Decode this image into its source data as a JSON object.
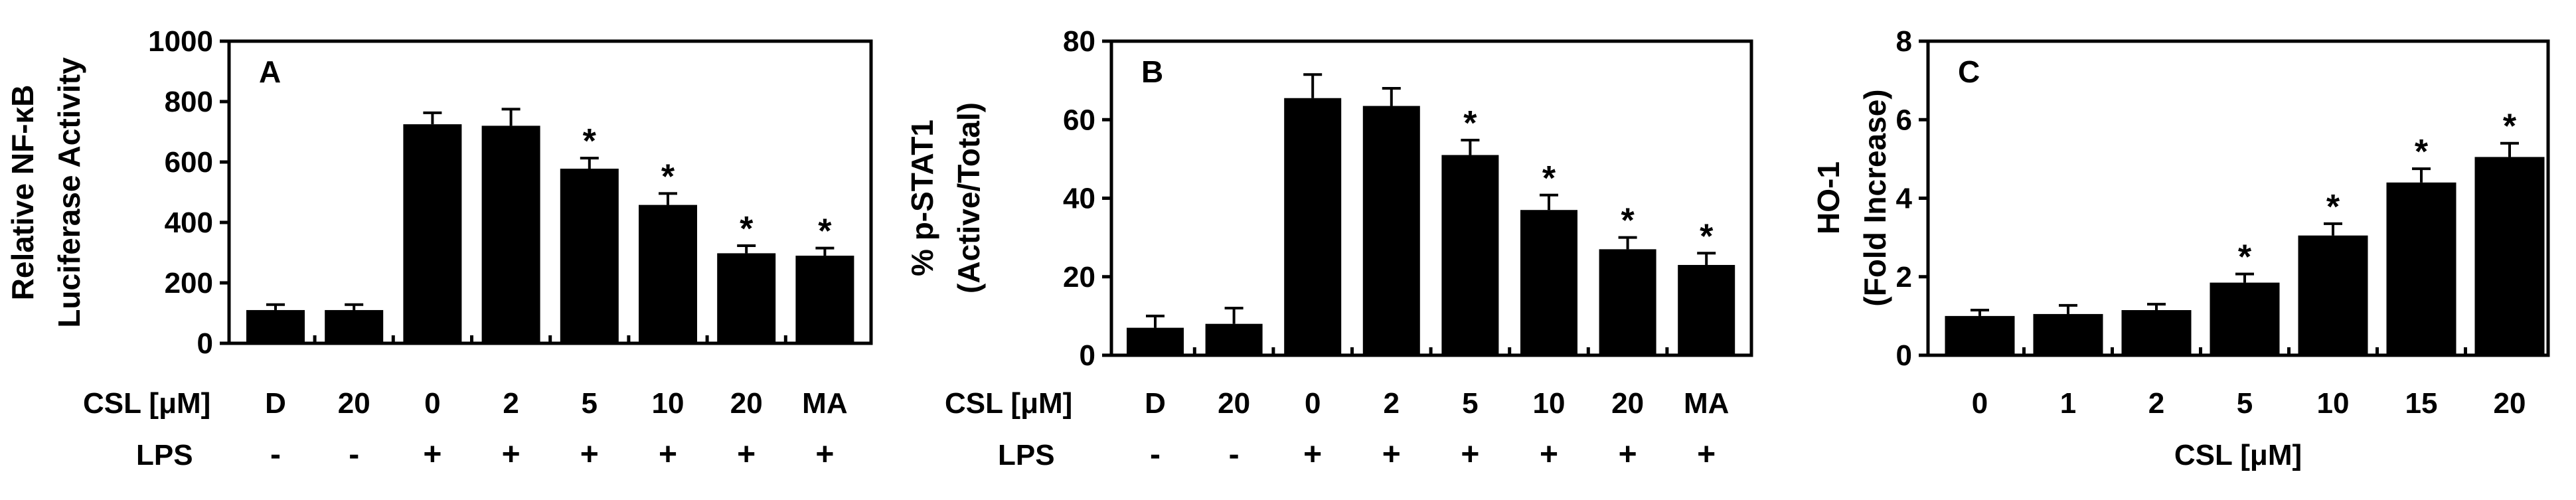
{
  "chart_data": [
    {
      "type": "bar",
      "panel_label": "A",
      "ylabel_lines": [
        "Relative NF-κB",
        "Luciferase Activity"
      ],
      "ylim": [
        0,
        1000
      ],
      "yticks": [
        0,
        200,
        400,
        600,
        800,
        1000
      ],
      "row1_label": "CSL [μM]",
      "row2_label": "LPS",
      "categories": [
        "D",
        "20",
        "0",
        "2",
        "5",
        "10",
        "20",
        "MA"
      ],
      "lps": [
        "-",
        "-",
        "+",
        "+",
        "+",
        "+",
        "+",
        "+"
      ],
      "values": [
        110,
        110,
        725,
        720,
        578,
        458,
        298,
        290
      ],
      "errors": [
        18,
        18,
        38,
        55,
        35,
        38,
        25,
        25
      ],
      "significance": [
        "",
        "",
        "",
        "",
        "*",
        "*",
        "*",
        "*"
      ],
      "grid": false,
      "legend": "none"
    },
    {
      "type": "bar",
      "panel_label": "B",
      "ylabel_lines": [
        "% p-STAT1",
        "(Active/Total)"
      ],
      "ylim": [
        0,
        80
      ],
      "yticks": [
        0,
        20,
        40,
        60,
        80
      ],
      "row1_label": "CSL [μM]",
      "row2_label": "LPS",
      "categories": [
        "D",
        "20",
        "0",
        "2",
        "5",
        "10",
        "20",
        "MA"
      ],
      "lps": [
        "-",
        "-",
        "+",
        "+",
        "+",
        "+",
        "+",
        "+"
      ],
      "values": [
        7,
        8,
        65.5,
        63.5,
        51,
        37,
        27,
        23
      ],
      "errors": [
        3,
        4,
        6,
        4.5,
        3.8,
        3.8,
        3,
        3
      ],
      "significance": [
        "",
        "",
        "",
        "",
        "*",
        "*",
        "*",
        "*"
      ],
      "grid": false,
      "legend": "none"
    },
    {
      "type": "bar",
      "panel_label": "C",
      "ylabel_lines": [
        "HO-1",
        "(Fold Increase)"
      ],
      "xlabel": "CSL [μM]",
      "ylim": [
        0,
        8
      ],
      "yticks": [
        0,
        2,
        4,
        6,
        8
      ],
      "categories": [
        "0",
        "1",
        "2",
        "5",
        "10",
        "15",
        "20"
      ],
      "values": [
        1.0,
        1.05,
        1.15,
        1.85,
        3.05,
        4.4,
        5.05
      ],
      "errors": [
        0.15,
        0.22,
        0.15,
        0.22,
        0.3,
        0.35,
        0.35
      ],
      "significance": [
        "",
        "",
        "",
        "*",
        "*",
        "*",
        "*"
      ],
      "grid": false,
      "legend": "none"
    }
  ]
}
